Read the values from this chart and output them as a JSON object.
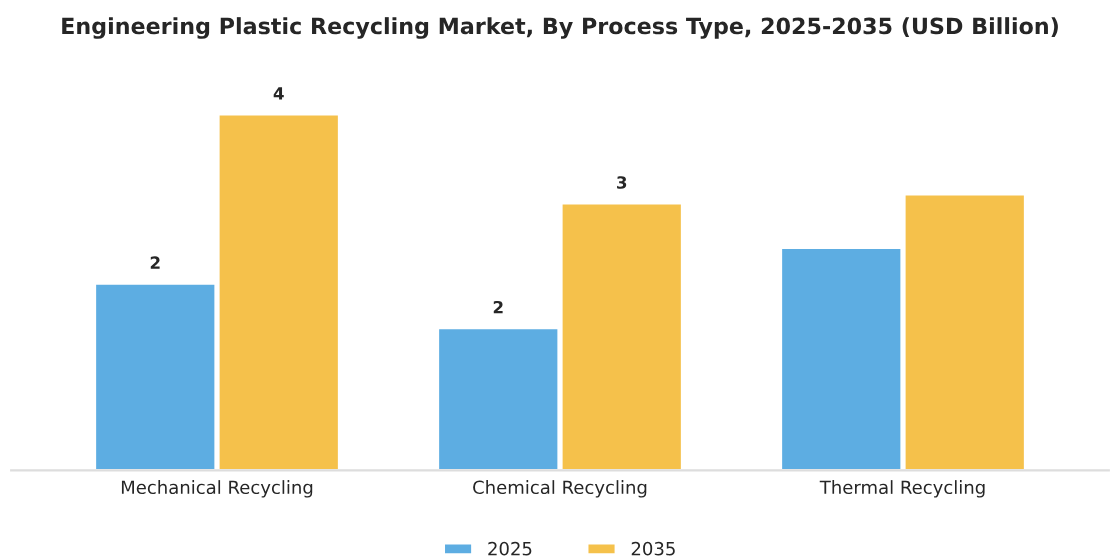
{
  "chart_data": {
    "type": "bar",
    "title": "Engineering Plastic Recycling Market, By Process Type, 2025-2035 (USD Billion)",
    "categories": [
      "Mechanical Recycling",
      "Chemical Recycling",
      "Thermal Recycling"
    ],
    "ylabel": null,
    "series": [
      {
        "name": "2025",
        "color": "#5dade2",
        "values": [
          2.1,
          1.6,
          2.5
        ],
        "value_labels": [
          "2",
          "2",
          null
        ]
      },
      {
        "name": "2035",
        "color": "#f5c14b",
        "values": [
          4.0,
          3.0,
          3.1
        ],
        "value_labels": [
          "4",
          "3",
          null
        ]
      }
    ],
    "legend": "bottom",
    "grid": false
  }
}
